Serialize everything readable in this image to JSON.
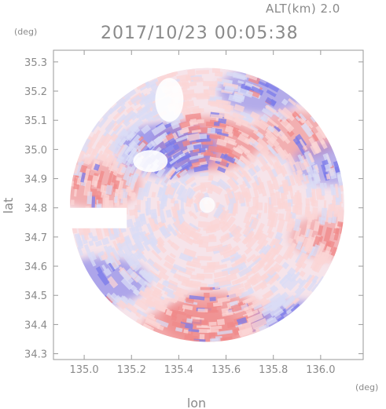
{
  "chart": {
    "altitude_label": "ALT(km)  2.0",
    "timestamp": "2017/10/23  00:05:38",
    "y_unit": "(deg)",
    "x_unit": "(deg)",
    "xlabel": "lon",
    "ylabel": "lat"
  },
  "colors": {
    "positive": "#f08a8a",
    "positive_light": "#fbd6d6",
    "negative": "#7b7bea",
    "negative_light": "#dadcf6",
    "axis": "#9a9a9a",
    "text": "#8a8a8a"
  },
  "chart_data": {
    "type": "heatmap",
    "description_field": "radial velocity field within radar range circle",
    "xlim": [
      134.87,
      136.18
    ],
    "ylim": [
      34.28,
      35.34
    ],
    "x_ticks": [
      135.0,
      135.2,
      135.4,
      135.6,
      135.8,
      136.0
    ],
    "x_tick_labels": [
      "135.0",
      "135.2",
      "135.4",
      "135.6",
      "135.8",
      "136.0"
    ],
    "y_ticks": [
      34.3,
      34.4,
      34.5,
      34.6,
      34.7,
      34.8,
      34.9,
      35.0,
      35.1,
      35.2,
      35.3
    ],
    "y_tick_labels": [
      "34.3",
      "34.4",
      "34.5",
      "34.6",
      "34.7",
      "34.8",
      "34.9",
      "35.0",
      "35.1",
      "35.2",
      "35.3"
    ],
    "radar_center": [
      135.52,
      34.81
    ],
    "radar_range_deg": 0.58,
    "regions": [
      {
        "sign": "positive",
        "lon": 135.52,
        "lat": 35.02,
        "strength": 0.9
      },
      {
        "sign": "positive",
        "lon": 135.55,
        "lat": 34.42,
        "strength": 0.9
      },
      {
        "sign": "positive",
        "lon": 135.45,
        "lat": 34.38,
        "strength": 0.8
      },
      {
        "sign": "positive",
        "lon": 135.05,
        "lat": 34.88,
        "strength": 0.6
      },
      {
        "sign": "positive",
        "lon": 135.9,
        "lat": 35.05,
        "strength": 0.6
      },
      {
        "sign": "positive",
        "lon": 136.05,
        "lat": 34.7,
        "strength": 0.5
      },
      {
        "sign": "negative",
        "lon": 135.35,
        "lat": 35.0,
        "strength": 0.8
      },
      {
        "sign": "negative",
        "lon": 135.08,
        "lat": 34.55,
        "strength": 0.6
      },
      {
        "sign": "negative",
        "lon": 135.9,
        "lat": 34.4,
        "strength": 0.6
      },
      {
        "sign": "negative",
        "lon": 135.75,
        "lat": 35.2,
        "strength": 0.5
      },
      {
        "sign": "negative",
        "lon": 136.05,
        "lat": 34.95,
        "strength": 0.4
      }
    ]
  }
}
